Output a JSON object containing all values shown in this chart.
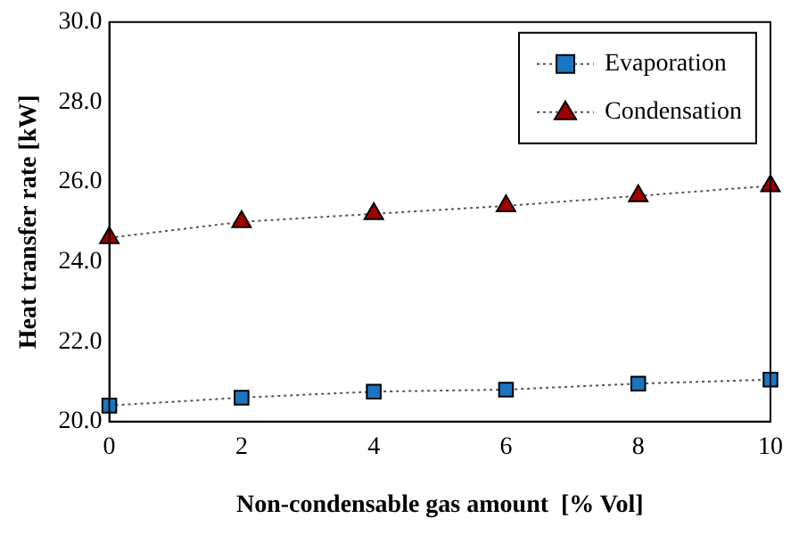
{
  "chart_data": {
    "type": "line",
    "xlabel": "Non-condensable gas amount  [% Vol]",
    "ylabel": "Heat transfer rate [kW]",
    "x": [
      0,
      2,
      4,
      6,
      8,
      10
    ],
    "series": [
      {
        "name": "Evaporation",
        "color": "#1a75c2",
        "marker": "square",
        "values": [
          20.4,
          20.6,
          20.75,
          20.8,
          20.95,
          21.05
        ]
      },
      {
        "name": "Condensation",
        "color": "#a00000",
        "marker": "triangle",
        "values": [
          24.6,
          25.0,
          25.2,
          25.4,
          25.65,
          25.9
        ]
      }
    ],
    "xlim": [
      0,
      10
    ],
    "xticks": [
      0,
      2,
      4,
      6,
      8,
      10
    ],
    "ylim": [
      20,
      30
    ],
    "yticks": [
      {
        "value": 20,
        "label": "20.0"
      },
      {
        "value": 22,
        "label": "22.0"
      },
      {
        "value": 24,
        "label": "24.0"
      },
      {
        "value": 26,
        "label": "26.0"
      },
      {
        "value": 28,
        "label": "28.0"
      },
      {
        "value": 30,
        "label": "30.0"
      }
    ],
    "grid": false,
    "legend": "top right",
    "line_style": "dotted"
  }
}
